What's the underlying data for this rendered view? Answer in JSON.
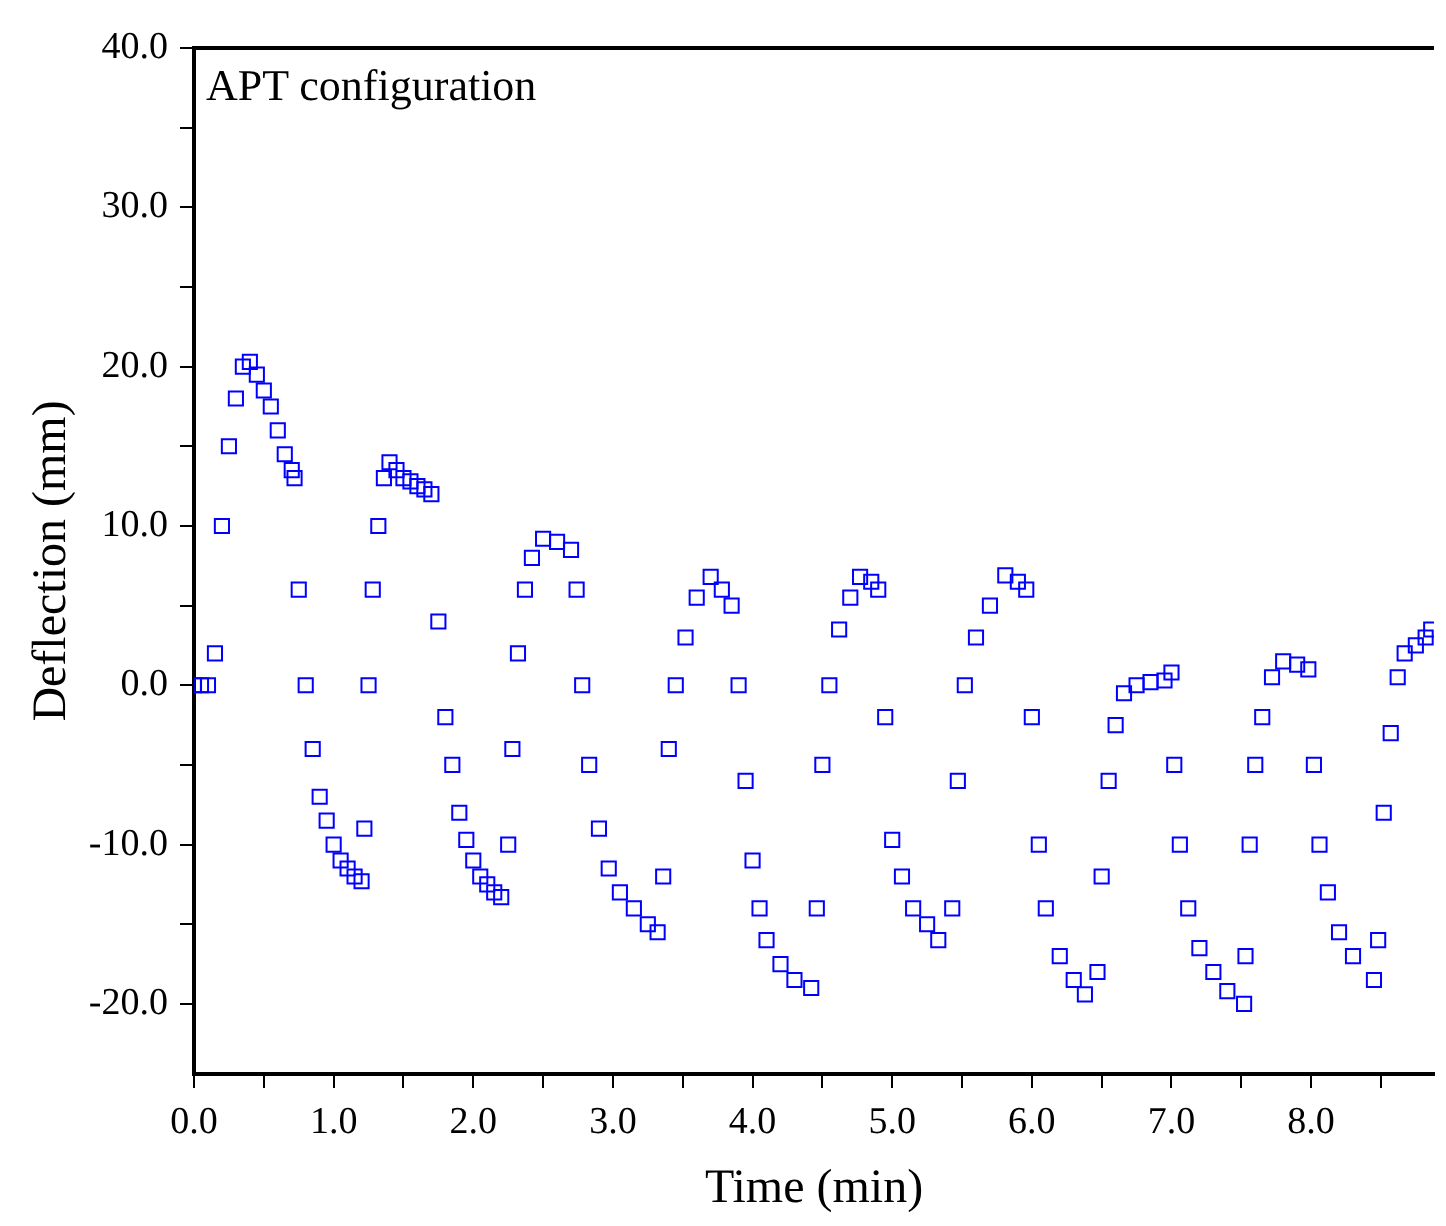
{
  "chart_data": {
    "type": "scatter",
    "xlabel": "Time (min)",
    "ylabel": "Deflection (mm)",
    "annotations": [
      "APT configuration"
    ],
    "xlim": [
      0,
      8.88
    ],
    "ylim": [
      -24.4,
      40
    ],
    "xticks": [
      {
        "value": 0,
        "label": "0.0"
      },
      {
        "value": 0.5,
        "label": null
      },
      {
        "value": 1,
        "label": "1.0"
      },
      {
        "value": 1.5,
        "label": null
      },
      {
        "value": 2,
        "label": "2.0"
      },
      {
        "value": 2.5,
        "label": null
      },
      {
        "value": 3,
        "label": "3.0"
      },
      {
        "value": 3.5,
        "label": null
      },
      {
        "value": 4,
        "label": "4.0"
      },
      {
        "value": 4.5,
        "label": null
      },
      {
        "value": 5,
        "label": "5.0"
      },
      {
        "value": 5.5,
        "label": null
      },
      {
        "value": 6,
        "label": "6.0"
      },
      {
        "value": 6.5,
        "label": null
      },
      {
        "value": 7,
        "label": "7.0"
      },
      {
        "value": 7.5,
        "label": null
      },
      {
        "value": 8,
        "label": "8.0"
      },
      {
        "value": 8.5,
        "label": null
      }
    ],
    "yticks": [
      {
        "value": -20,
        "label": "-20.0"
      },
      {
        "value": -15,
        "label": null
      },
      {
        "value": -10,
        "label": "-10.0"
      },
      {
        "value": -5,
        "label": null
      },
      {
        "value": 0,
        "label": "0.0"
      },
      {
        "value": 5,
        "label": null
      },
      {
        "value": 10,
        "label": "10.0"
      },
      {
        "value": 15,
        "label": null
      },
      {
        "value": 20,
        "label": "20.0"
      },
      {
        "value": 25,
        "label": null
      },
      {
        "value": 30,
        "label": "30.0"
      },
      {
        "value": 35,
        "label": null
      },
      {
        "value": 40,
        "label": "40.0"
      }
    ],
    "grid": false,
    "legend": false,
    "marker": "square",
    "series": [
      {
        "color": "#0000ff",
        "x": [
          0,
          0.05,
          0.1,
          0.15,
          0.2,
          0.25,
          0.3,
          0.35,
          0.4,
          0.45,
          0.5,
          0.55,
          0.6,
          0.65,
          0.7,
          0.72,
          0.75,
          0.8,
          0.85,
          0.9,
          0.95,
          1.0,
          1.05,
          1.1,
          1.15,
          1.2,
          1.22,
          1.25,
          1.28,
          1.32,
          1.36,
          1.4,
          1.45,
          1.5,
          1.55,
          1.6,
          1.65,
          1.7,
          1.75,
          1.8,
          1.85,
          1.9,
          1.95,
          2.0,
          2.05,
          2.1,
          2.15,
          2.2,
          2.25,
          2.28,
          2.32,
          2.37,
          2.42,
          2.5,
          2.6,
          2.7,
          2.74,
          2.78,
          2.83,
          2.9,
          2.97,
          3.05,
          3.15,
          3.25,
          3.32,
          3.36,
          3.4,
          3.45,
          3.52,
          3.6,
          3.7,
          3.78,
          3.85,
          3.9,
          3.95,
          4.0,
          4.05,
          4.1,
          4.2,
          4.3,
          4.42,
          4.46,
          4.5,
          4.55,
          4.62,
          4.7,
          4.77,
          4.85,
          4.9,
          4.95,
          5.0,
          5.07,
          5.15,
          5.25,
          5.33,
          5.43,
          5.47,
          5.52,
          5.6,
          5.7,
          5.81,
          5.9,
          5.96,
          6.0,
          6.05,
          6.1,
          6.2,
          6.3,
          6.38,
          6.47,
          6.5,
          6.55,
          6.6,
          6.66,
          6.75,
          6.85,
          6.95,
          7.0,
          7.02,
          7.06,
          7.12,
          7.2,
          7.3,
          7.4,
          7.52,
          7.53,
          7.56,
          7.6,
          7.65,
          7.72,
          7.8,
          7.9,
          7.98,
          8.02,
          8.06,
          8.12,
          8.2,
          8.3,
          8.45,
          8.48,
          8.52,
          8.57,
          8.62,
          8.67,
          8.75,
          8.82,
          8.86
        ],
        "values": [
          0,
          0,
          0,
          2,
          10,
          15,
          18,
          20,
          20.3,
          19.5,
          18.5,
          17.5,
          16,
          14.5,
          13.5,
          13,
          6,
          0,
          -4,
          -7,
          -8.5,
          -10,
          -11,
          -11.5,
          -12,
          -12.3,
          -9,
          0,
          6,
          10,
          13,
          14,
          13.5,
          13,
          12.8,
          12.5,
          12.3,
          12,
          4,
          -2,
          -5,
          -8,
          -9.7,
          -11,
          -12,
          -12.5,
          -13,
          -13.3,
          -10,
          -4,
          2,
          6,
          8,
          9.2,
          9,
          8.5,
          6,
          0,
          -5,
          -9,
          -11.5,
          -13,
          -14,
          -15,
          -15.5,
          -12,
          -4,
          0,
          3,
          5.5,
          6.8,
          6,
          5,
          0,
          -6,
          -11,
          -14,
          -16,
          -17.5,
          -18.5,
          -19,
          -14,
          -5,
          0,
          3.5,
          5.5,
          6.8,
          6.5,
          6,
          -2,
          -9.7,
          -12,
          -14,
          -15,
          -16,
          -14,
          -6,
          0,
          3,
          5,
          6.9,
          6.5,
          6,
          -2,
          -10,
          -14,
          -17,
          -18.5,
          -19.4,
          -18,
          -12,
          -6,
          -2.5,
          -0.5,
          0,
          0.2,
          0.3,
          0.8,
          -5,
          -10,
          -14,
          -16.5,
          -18,
          -19.2,
          -20,
          -17,
          -10,
          -5,
          -2,
          0.5,
          1.5,
          1.3,
          1,
          -5,
          -10,
          -13,
          -15.5,
          -17,
          -18.5,
          -16,
          -8,
          -3,
          0.5,
          2,
          2.5,
          3,
          3.5
        ]
      }
    ]
  }
}
